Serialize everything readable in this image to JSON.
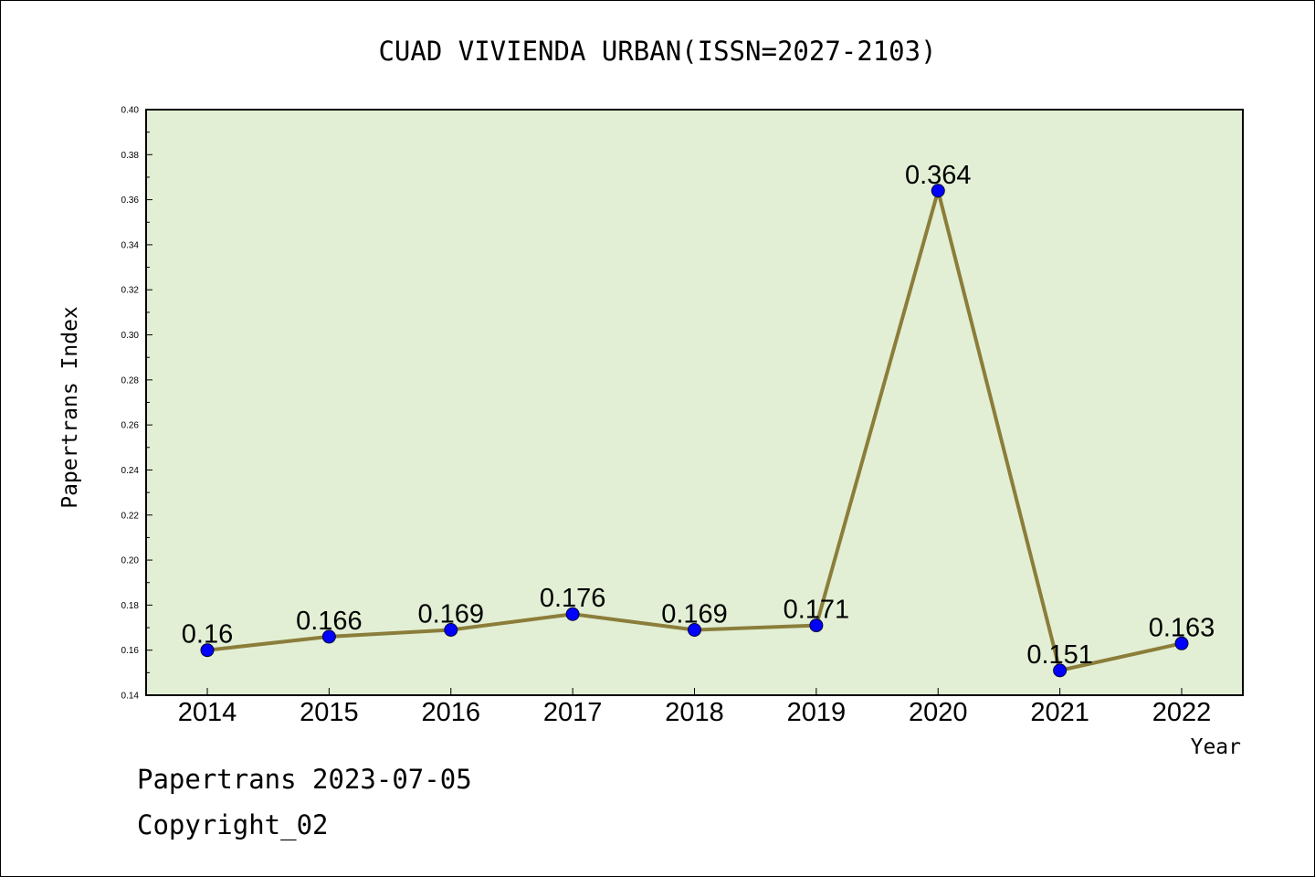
{
  "chart_data": {
    "type": "line",
    "title": "CUAD VIVIENDA URBAN(ISSN=2027-2103)",
    "xlabel": "Year",
    "ylabel": "Papertrans Index",
    "x": [
      "2014",
      "2015",
      "2016",
      "2017",
      "2018",
      "2019",
      "2020",
      "2021",
      "2022"
    ],
    "series": [
      {
        "values": [
          0.16,
          0.166,
          0.169,
          0.176,
          0.169,
          0.171,
          0.364,
          0.151,
          0.163
        ],
        "labels": [
          "0.16",
          "0.166",
          "0.169",
          "0.176",
          "0.169",
          "0.171",
          "0.364",
          "0.151",
          "0.163"
        ]
      }
    ],
    "ylim": [
      0.14,
      0.4
    ],
    "yticks": [
      "0.14",
      "0.16",
      "0.18",
      "0.20",
      "0.22",
      "0.24",
      "0.26",
      "0.28",
      "0.30",
      "0.32",
      "0.34",
      "0.36",
      "0.38",
      "0.40"
    ],
    "grid": false,
    "colors": {
      "plot_background": "#e2efd4",
      "line": "#8b7d3a",
      "marker": "#0000ff"
    }
  },
  "footer": {
    "date_line": "Papertrans 2023-07-05",
    "copyright_line": "Copyright_02"
  }
}
